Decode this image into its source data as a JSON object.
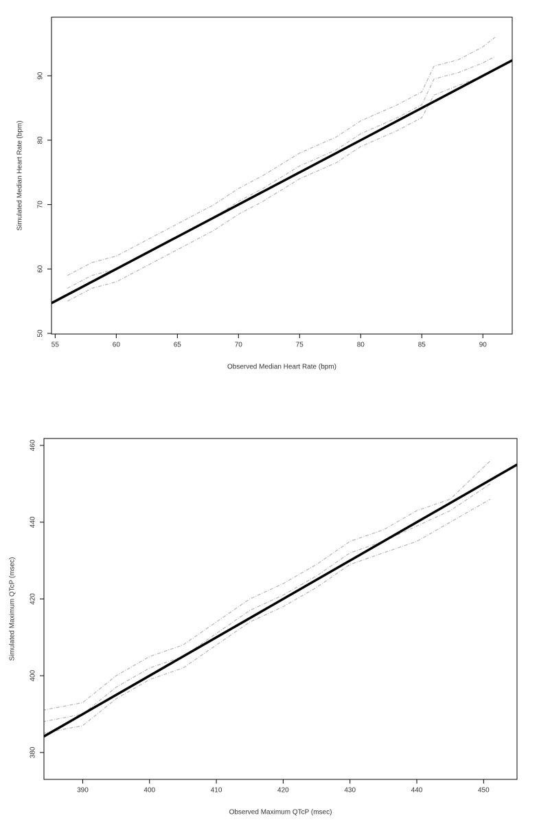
{
  "chart_data": [
    {
      "type": "line",
      "x_label": "Observed Median Heart Rate (bpm)",
      "y_label": "Simulated Median Heart Rate (bpm)",
      "xlim": [
        54.7,
        92.4
      ],
      "ylim": [
        49.9,
        99.1
      ],
      "xticks": [
        55,
        60,
        65,
        70,
        75,
        80,
        85,
        90
      ],
      "yticks": [
        50,
        60,
        70,
        80,
        90
      ],
      "series": [
        {
          "color": "#b5b5b5",
          "dashed": true,
          "line_width": 1.2,
          "x": [
            56,
            58,
            60,
            62,
            65,
            68,
            70,
            72,
            75,
            78,
            80,
            83,
            85,
            86,
            88,
            90,
            91
          ],
          "values": [
            59,
            61,
            62,
            64,
            67,
            70,
            72.5,
            74.5,
            78,
            80.5,
            83,
            85.5,
            87.5,
            91.5,
            92.5,
            94.5,
            96
          ]
        },
        {
          "color": "#b5b5b5",
          "dashed": true,
          "line_width": 1.2,
          "x": [
            56,
            58,
            60,
            62,
            65,
            68,
            70,
            72,
            75,
            78,
            80,
            83,
            85,
            86,
            88,
            90,
            91
          ],
          "values": [
            57,
            59,
            60,
            62,
            65,
            68,
            70.5,
            72.5,
            76,
            78.5,
            81,
            83.5,
            85.5,
            89.5,
            90.5,
            92,
            93
          ]
        },
        {
          "color": "#b5b5b5",
          "dashed": true,
          "line_width": 1.2,
          "x": [
            56,
            58,
            60,
            62,
            65,
            68,
            70,
            72,
            75,
            78,
            80,
            83,
            85,
            86,
            88,
            90,
            91
          ],
          "values": [
            55,
            57,
            58,
            60,
            63,
            66,
            68.5,
            70.5,
            74,
            76.5,
            79,
            81.5,
            83.5,
            87,
            88.5,
            90,
            91
          ]
        },
        {
          "color": "#000000",
          "dashed": false,
          "line_width": 3.5,
          "x": [
            54.7,
            92.4
          ],
          "values": [
            54.7,
            92.4
          ]
        }
      ]
    },
    {
      "type": "line",
      "x_label": "Observed Maximum QTcP (msec)",
      "y_label": "Simulated Maximum QTcP (msec)",
      "xlim": [
        384.2,
        455
      ],
      "ylim": [
        373,
        461.8
      ],
      "xticks": [
        390,
        400,
        410,
        420,
        430,
        440,
        450
      ],
      "yticks": [
        380,
        400,
        420,
        440,
        460
      ],
      "series": [
        {
          "color": "#b5b5b5",
          "dashed": true,
          "line_width": 1.2,
          "x": [
            384,
            390,
            395,
            400,
            405,
            410,
            415,
            420,
            425,
            430,
            435,
            440,
            445,
            451
          ],
          "values": [
            391,
            393,
            400,
            405,
            408,
            414,
            420,
            424,
            429,
            435,
            438,
            443,
            446,
            456
          ]
        },
        {
          "color": "#b5b5b5",
          "dashed": true,
          "line_width": 1.2,
          "x": [
            384,
            390,
            395,
            400,
            405,
            410,
            415,
            420,
            425,
            430,
            435,
            440,
            445,
            451
          ],
          "values": [
            388,
            390,
            397,
            402,
            405,
            411,
            417,
            421,
            426,
            432,
            435,
            439,
            443,
            450
          ]
        },
        {
          "color": "#b5b5b5",
          "dashed": true,
          "line_width": 1.2,
          "x": [
            384,
            390,
            395,
            400,
            405,
            410,
            415,
            420,
            425,
            430,
            435,
            440,
            445,
            451
          ],
          "values": [
            385,
            387,
            394,
            399,
            402,
            408,
            414,
            418,
            423,
            429,
            432,
            435,
            440,
            446
          ]
        },
        {
          "color": "#000000",
          "dashed": false,
          "line_width": 3.5,
          "x": [
            384.2,
            455
          ],
          "values": [
            384.2,
            455
          ]
        }
      ]
    }
  ]
}
